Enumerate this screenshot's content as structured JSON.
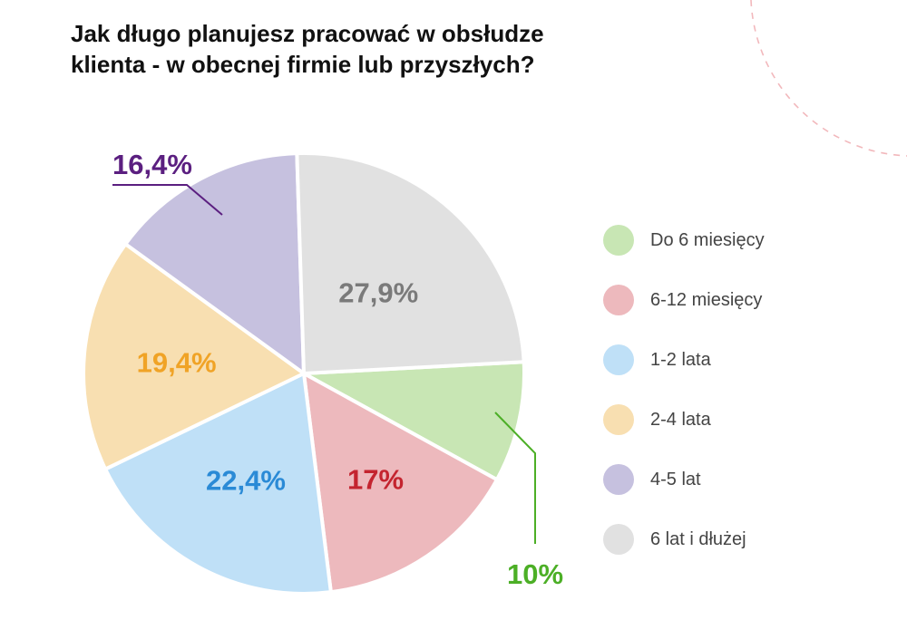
{
  "title_lines": [
    "Jak długo planujesz pracować w obsłudze",
    "klienta - w obecnej firmie lub przyszłych?"
  ],
  "chart_data": {
    "type": "pie",
    "title": "Jak długo planujesz pracować w obsłudze klienta - w obecnej firmie lub przyszłych?",
    "slices": [
      {
        "label": "Do 6 miesięcy",
        "value": 10,
        "value_label": "10%",
        "color": "#c8e6b4",
        "label_color": "#4caf26"
      },
      {
        "label": "6-12 miesięcy",
        "value": 17,
        "value_label": "17%",
        "color": "#edb9bd",
        "label_color": "#c4242f"
      },
      {
        "label": "1-2 lata",
        "value": 22.4,
        "value_label": "22,4%",
        "color": "#bfe0f7",
        "label_color": "#2a8ad6"
      },
      {
        "label": "2-4 lata",
        "value": 19.4,
        "value_label": "19,4%",
        "color": "#f8dfb1",
        "label_color": "#f0a326"
      },
      {
        "label": "4-5 lat",
        "value": 16.4,
        "value_label": "16,4%",
        "color": "#c6c1df",
        "label_color": "#5b1f80"
      },
      {
        "label": "6 lat i dłużej",
        "value": 27.9,
        "value_label": "27,9%",
        "color": "#e1e1e1",
        "label_color": "#7a7a7a"
      }
    ],
    "legend": "right"
  },
  "decoration_color": "#f2b8bc"
}
